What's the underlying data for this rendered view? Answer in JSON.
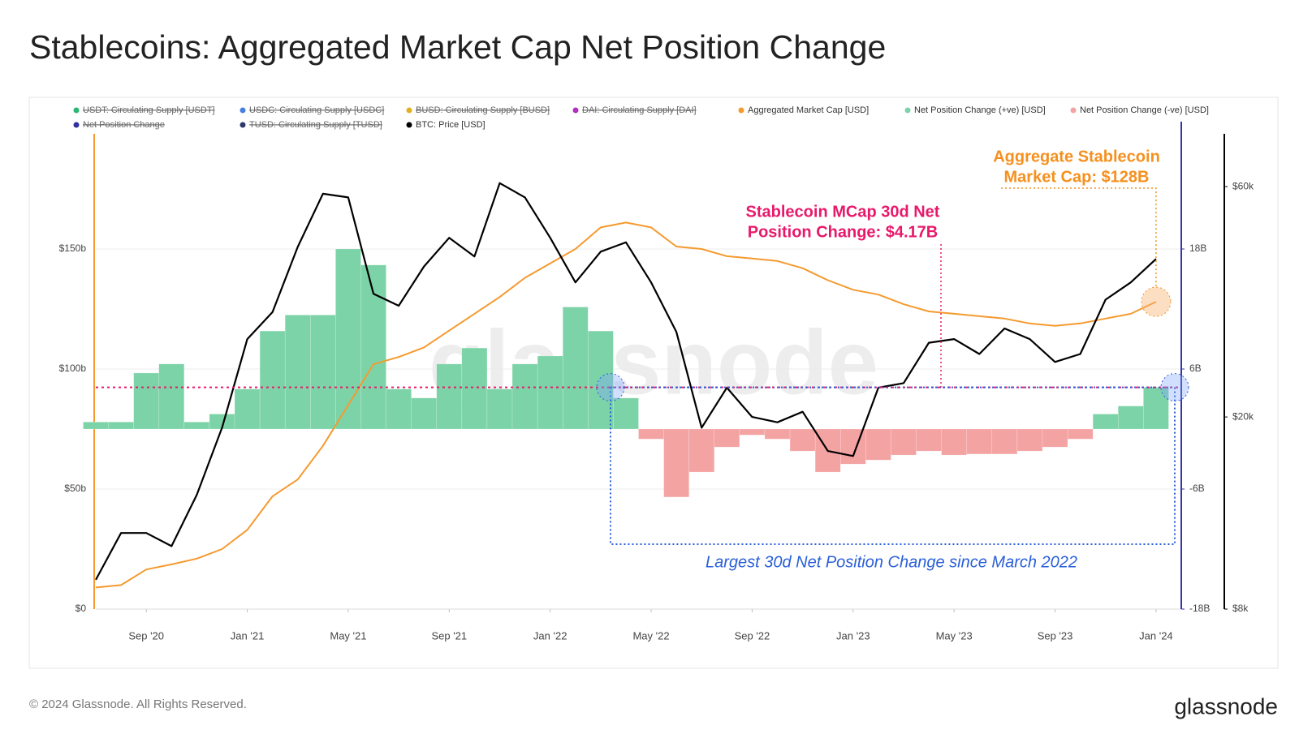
{
  "title": "Stablecoins: Aggregated Market Cap Net Position Change",
  "footer": "© 2024 Glassnode. All Rights Reserved.",
  "logo": "glassnode",
  "watermark": "glassnode",
  "chart_data": {
    "type": "combo",
    "x": [
      "2020-07",
      "2020-08",
      "2020-09",
      "2020-10",
      "2020-11",
      "2020-12",
      "2021-01",
      "2021-02",
      "2021-03",
      "2021-04",
      "2021-05",
      "2021-06",
      "2021-07",
      "2021-08",
      "2021-09",
      "2021-10",
      "2021-11",
      "2021-12",
      "2022-01",
      "2022-02",
      "2022-03",
      "2022-04",
      "2022-05",
      "2022-06",
      "2022-07",
      "2022-08",
      "2022-09",
      "2022-10",
      "2022-11",
      "2022-12",
      "2023-01",
      "2023-02",
      "2023-03",
      "2023-04",
      "2023-05",
      "2023-06",
      "2023-07",
      "2023-08",
      "2023-09",
      "2023-10",
      "2023-11",
      "2023-12",
      "2024-01"
    ],
    "xlim": [
      "2020-07",
      "2024-02"
    ],
    "xticks": [
      {
        "value": "2020-09",
        "label": "Sep '20"
      },
      {
        "value": "2021-01",
        "label": "Jan '21"
      },
      {
        "value": "2021-05",
        "label": "May '21"
      },
      {
        "value": "2021-09",
        "label": "Sep '21"
      },
      {
        "value": "2022-01",
        "label": "Jan '22"
      },
      {
        "value": "2022-05",
        "label": "May '22"
      },
      {
        "value": "2022-09",
        "label": "Sep '22"
      },
      {
        "value": "2023-01",
        "label": "Jan '23"
      },
      {
        "value": "2023-05",
        "label": "May '23"
      },
      {
        "value": "2023-09",
        "label": "Sep '23"
      },
      {
        "value": "2024-01",
        "label": "Jan '24"
      }
    ],
    "ylim": [
      0,
      200
    ],
    "yticks": [
      {
        "value": 0,
        "label": "$0"
      },
      {
        "value": 50,
        "label": "$50b"
      },
      {
        "value": 100,
        "label": "$100b"
      },
      {
        "value": 150,
        "label": "$150b"
      }
    ],
    "y2lim": [
      -18,
      30
    ],
    "y2ticks": [
      {
        "value": -18,
        "label": "-18B"
      },
      {
        "value": -6,
        "label": "-6B"
      },
      {
        "value": 6,
        "label": "6B"
      },
      {
        "value": 18,
        "label": "18B"
      }
    ],
    "y3lim": [
      8000,
      79000
    ],
    "y3log": true,
    "y3ticks": [
      {
        "value": 8000,
        "label": "$8k"
      },
      {
        "value": 20000,
        "label": "$20k"
      },
      {
        "value": 60000,
        "label": "$60k"
      }
    ],
    "grid": true,
    "legend_hidden": [
      {
        "name": "USDT: Circulating Supply [USDT]",
        "color": "#2bb673"
      },
      {
        "name": "USDC: Circulating Supply [USDC]",
        "color": "#4a7fe0"
      },
      {
        "name": "BUSD: Circulating Supply [BUSD]",
        "color": "#e0b020"
      },
      {
        "name": "DAI: Circulating Supply [DAI]",
        "color": "#b030c0"
      },
      {
        "name": "Net Position Change",
        "color": "#3030a0"
      },
      {
        "name": "TUSD: Circulating Supply [TUSD]",
        "color": "#2a3a6a"
      }
    ],
    "series": [
      {
        "name": "Aggregated Market Cap [USD]",
        "color": "#f59a2f",
        "type": "line",
        "axis": "y",
        "values": [
          9,
          10,
          16.5,
          18.6,
          21,
          25,
          33,
          47,
          54,
          68,
          85,
          102,
          105,
          109,
          116,
          123,
          130,
          138,
          144,
          150,
          159,
          161,
          159,
          151,
          150,
          147,
          146,
          145,
          142,
          137,
          133,
          131,
          127,
          124,
          123,
          122,
          121,
          119,
          118,
          119,
          121,
          123,
          128
        ]
      },
      {
        "name": "Net Position Change (+ve) [USD]",
        "color": "#7dd3a8",
        "type": "bar",
        "axis": "y2",
        "values": [
          0.7,
          0.7,
          5.6,
          6.5,
          0.7,
          1.5,
          4,
          9.8,
          11.4,
          11.4,
          18,
          16.4,
          4,
          3.1,
          6.5,
          8.1,
          4,
          6.5,
          7.3,
          12.2,
          9.8,
          3.1,
          null,
          null,
          null,
          null,
          null,
          null,
          null,
          null,
          null,
          null,
          null,
          null,
          null,
          null,
          null,
          null,
          null,
          null,
          1.5,
          2.3,
          4.17
        ]
      },
      {
        "name": "Net Position Change (-ve) [USD]",
        "color": "#f4a3a3",
        "type": "bar",
        "axis": "y2",
        "values": [
          null,
          null,
          null,
          null,
          null,
          null,
          null,
          null,
          null,
          null,
          null,
          null,
          null,
          null,
          null,
          null,
          null,
          null,
          null,
          null,
          null,
          null,
          -1,
          -6.8,
          -4.3,
          -1.8,
          -0.6,
          -1,
          -2.2,
          -4.3,
          -3.5,
          -3.1,
          -2.6,
          -2.2,
          -2.6,
          -2.5,
          -2.5,
          -2.2,
          -1.8,
          -1,
          null,
          null,
          null
        ]
      },
      {
        "name": "BTC: Price [USD]",
        "color": "#000000",
        "type": "line",
        "axis": "y3",
        "values": [
          9200,
          11500,
          11500,
          10800,
          13800,
          19000,
          29000,
          33000,
          45000,
          58000,
          57000,
          36000,
          34000,
          41000,
          47000,
          43000,
          61000,
          57000,
          47000,
          38000,
          44000,
          46000,
          38000,
          30000,
          19000,
          23000,
          20000,
          19500,
          20500,
          17000,
          16600,
          23000,
          23500,
          28500,
          29000,
          27000,
          30500,
          29000,
          26000,
          27000,
          35000,
          38000,
          42500
        ]
      }
    ],
    "annotations": [
      {
        "lines": [
          "Aggregate Stablecoin",
          "Market Cap: $128B"
        ],
        "color": "#f5901e"
      },
      {
        "lines": [
          "Stablecoin MCap 30d Net",
          "Position Change: $4.17B"
        ],
        "color": "#e8196b"
      },
      {
        "lines": [
          "Largest 30d Net Position Change since March 2022"
        ],
        "color": "#2a5fd8"
      }
    ]
  }
}
